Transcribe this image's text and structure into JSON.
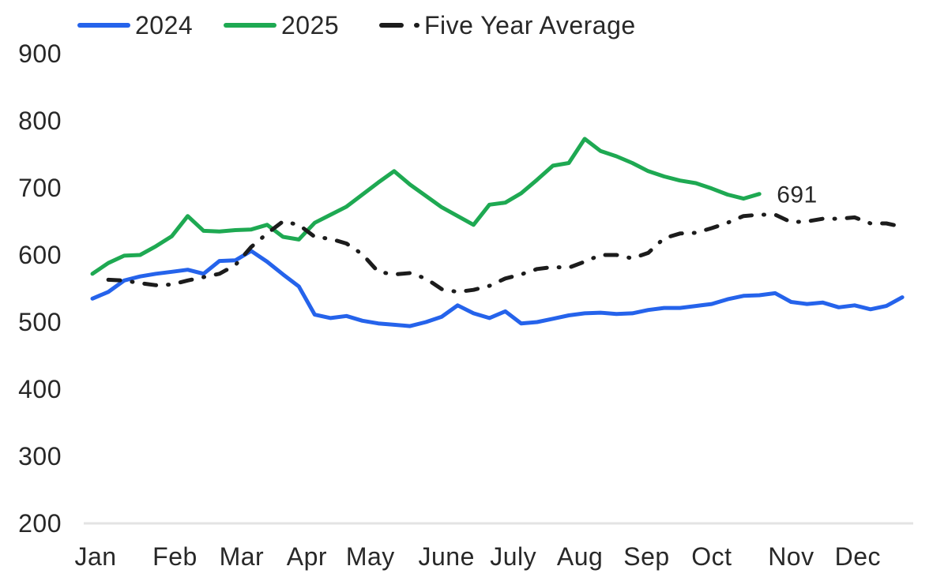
{
  "theme": {
    "background": "#ffffff",
    "axis_line_color": "#e3e3e3",
    "text_color": "#282828"
  },
  "legend": {
    "items": [
      {
        "label": "2024"
      },
      {
        "label": "2025"
      },
      {
        "label": "Five Year Average"
      }
    ]
  },
  "chart_data": {
    "type": "line",
    "title": "",
    "xlabel": "",
    "ylabel": "",
    "ylim": [
      200,
      900
    ],
    "yticks": [
      900,
      800,
      700,
      600,
      500,
      400,
      300,
      200
    ],
    "grid": false,
    "legend_position": "top",
    "x_unit": "week-of-year",
    "x_categories": [
      "Jan",
      "Feb",
      "Mar",
      "Apr",
      "May",
      "June",
      "July",
      "Aug",
      "Sep",
      "Oct",
      "Nov",
      "Dec"
    ],
    "x_tick_weeks": [
      0.2,
      5.2,
      9.4,
      13.5,
      17.5,
      22.3,
      26.5,
      30.7,
      34.9,
      39.0,
      44.0,
      48.2
    ],
    "series": [
      {
        "name": "2024",
        "color": "#2563eb",
        "dash": "solid",
        "values": [
          535,
          545,
          562,
          568,
          572,
          575,
          578,
          572,
          591,
          592,
          606,
          590,
          571,
          553,
          511,
          506,
          509,
          502,
          498,
          496,
          494,
          500,
          508,
          525,
          513,
          506,
          516,
          498,
          500,
          505,
          510,
          513,
          514,
          512,
          513,
          518,
          521,
          521,
          524,
          527,
          534,
          539,
          540,
          543,
          530,
          527,
          529,
          522,
          525,
          519,
          524,
          537
        ]
      },
      {
        "name": "2025",
        "color": "#1ea952",
        "dash": "solid",
        "end_label": "691",
        "values": [
          572,
          588,
          599,
          600,
          613,
          628,
          658,
          636,
          635,
          637,
          638,
          645,
          627,
          623,
          648,
          660,
          672,
          690,
          708,
          725,
          705,
          688,
          671,
          658,
          645,
          675,
          678,
          692,
          712,
          733,
          737,
          773,
          755,
          747,
          737,
          725,
          717,
          711,
          707,
          699,
          690,
          684,
          691
        ]
      },
      {
        "name": "Five Year Average",
        "color": "#1c1c1c",
        "dash": "dashdot",
        "values": [
          null,
          563,
          562,
          558,
          555,
          556,
          562,
          567,
          572,
          585,
          612,
          632,
          650,
          645,
          627,
          624,
          617,
          601,
          575,
          571,
          573,
          565,
          549,
          545,
          548,
          554,
          565,
          571,
          579,
          582,
          581,
          590,
          600,
          600,
          595,
          603,
          625,
          632,
          633,
          640,
          648,
          658,
          660,
          660,
          649,
          650,
          654,
          654,
          656,
          647,
          647,
          642
        ]
      }
    ]
  }
}
